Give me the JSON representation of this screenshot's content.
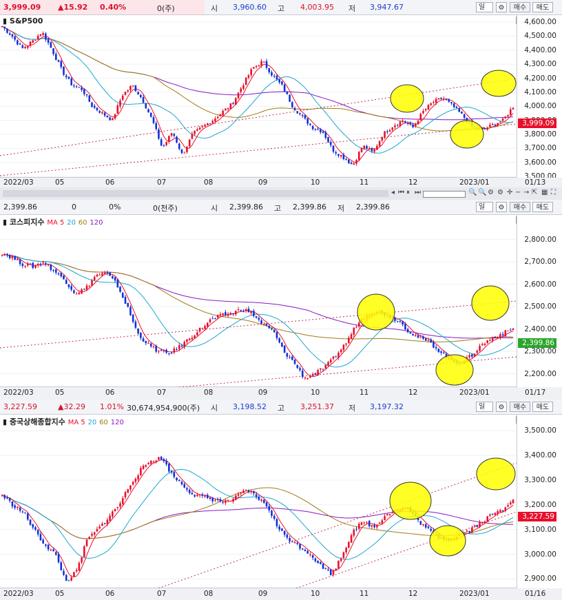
{
  "panels": [
    {
      "title": "S&P500",
      "header": {
        "price": "3,999.09",
        "change": "▲15.92",
        "pct": "0.40%",
        "volume": "0(주)",
        "open_label": "시",
        "open": "3,960.60",
        "high_label": "고",
        "high": "4,003.95",
        "low_label": "저",
        "low": "3,947.67"
      },
      "period": "일",
      "buy": "매수",
      "sell": "매도",
      "ma_legend": [],
      "last_price": "3,999.09",
      "x_labels": [
        "2022/03",
        "05",
        "06",
        "07",
        "08",
        "09",
        "10",
        "11",
        "12",
        "2023/01"
      ],
      "x_end": "01/13",
      "y_ticks": [
        "4,600.00",
        "4,500.00",
        "4,400.00",
        "4,300.00",
        "4,200.00",
        "4,100.00",
        "4,000.00",
        "3,900.00",
        "3,800.00",
        "3,700.00",
        "3,600.00",
        "3,500.00"
      ]
    },
    {
      "title": "코스피지수",
      "header": {
        "price": "2,399.86",
        "change": "0",
        "pct": "0%",
        "volume": "0(천주)",
        "open_label": "시",
        "open": "2,399.86",
        "high_label": "고",
        "high": "2,399.86",
        "low_label": "저",
        "low": "2,399.86"
      },
      "period": "일",
      "buy": "매수",
      "sell": "매도",
      "ma_legend": [
        "MA 5",
        "20",
        "60",
        "120"
      ],
      "last_price": "2,399.86",
      "x_labels": [
        "2022/03",
        "05",
        "06",
        "07",
        "08",
        "09",
        "10",
        "11",
        "12",
        "2023/01"
      ],
      "x_end": "01/17",
      "y_ticks": [
        "2,800.00",
        "2,700.00",
        "2,600.00",
        "2,500.00",
        "2,400.00",
        "2,300.00",
        "2,200.00"
      ]
    },
    {
      "title": "중국상해종합지수",
      "header": {
        "price": "3,227.59",
        "change": "▲32.29",
        "pct": "1.01%",
        "volume": "30,674,954,900(주)",
        "open_label": "시",
        "open": "3,198.52",
        "high_label": "고",
        "high": "3,251.37",
        "low_label": "저",
        "low": "3,197.32"
      },
      "period": "일",
      "buy": "매수",
      "sell": "매도",
      "ma_legend": [
        "MA 5",
        "20",
        "60",
        "120"
      ],
      "last_price": "3,227.59",
      "x_labels": [
        "2022/03",
        "05",
        "06",
        "07",
        "08",
        "09",
        "10",
        "11",
        "12",
        "2023/01"
      ],
      "x_end": "01/16",
      "y_ticks": [
        "3,500.00",
        "3,400.00",
        "3,300.00",
        "3,200.00",
        "3,100.00",
        "3,000.00",
        "2,900.00"
      ]
    }
  ],
  "colors": {
    "up": "#e8102b",
    "down": "#1030d8",
    "ma5": "#e8102b",
    "ma20": "#1ea5d2",
    "ma60": "#a07a10",
    "ma120": "#8a16c6",
    "highlight": "#ffff00",
    "trend": "#c0304a"
  },
  "chart_data": [
    {
      "type": "candlestick",
      "title": "S&P500",
      "ylim": [
        3491,
        4649
      ],
      "x_range": [
        "2022/03",
        "2023/01/13"
      ],
      "last": 3999.09,
      "series": [
        {
          "name": "close",
          "values": [
            4570,
            4500,
            4410,
            4460,
            4530,
            4400,
            4250,
            4150,
            4120,
            4000,
            3950,
            3900,
            4080,
            4150,
            4050,
            3900,
            3700,
            3820,
            3650,
            3800,
            3850,
            3900,
            3960,
            4020,
            4150,
            4270,
            4320,
            4220,
            4140,
            4000,
            3920,
            3850,
            3820,
            3690,
            3640,
            3580,
            3720,
            3670,
            3800,
            3860,
            3900,
            3850,
            3960,
            4030,
            4060,
            4000,
            3930,
            3850,
            3830,
            3870,
            3900,
            3999
          ]
        }
      ],
      "highlights": [
        "4,100 area on 2022/12",
        "3,800 area on 2023/01",
        "4,200 target"
      ],
      "trendlines": "upward channel"
    },
    {
      "type": "candlestick",
      "title": "코스피지수",
      "ylim": [
        2140,
        2910
      ],
      "x_range": [
        "2022/03",
        "2023/01/17"
      ],
      "last": 2399.86,
      "series": [
        {
          "name": "close",
          "values": [
            2740,
            2720,
            2690,
            2680,
            2700,
            2660,
            2620,
            2560,
            2580,
            2640,
            2650,
            2600,
            2500,
            2380,
            2330,
            2300,
            2290,
            2320,
            2360,
            2400,
            2440,
            2460,
            2470,
            2490,
            2470,
            2420,
            2390,
            2300,
            2250,
            2180,
            2200,
            2230,
            2280,
            2340,
            2420,
            2470,
            2480,
            2460,
            2440,
            2390,
            2360,
            2340,
            2300,
            2260,
            2250,
            2280,
            2330,
            2360,
            2380,
            2400
          ]
        }
      ],
      "highlights": [
        "2,480 area on 2022/11",
        "2,230 area on 2023/01",
        "2,510 target"
      ],
      "trendlines": "upward channel"
    },
    {
      "type": "candlestick",
      "title": "중국상해종합지수",
      "ylim": [
        2862,
        3565
      ],
      "x_range": [
        "2022/03",
        "2023/01/16"
      ],
      "last": 3227.59,
      "series": [
        {
          "name": "close",
          "values": [
            3240,
            3200,
            3170,
            3100,
            3040,
            3000,
            2890,
            2930,
            3060,
            3100,
            3150,
            3200,
            3280,
            3340,
            3380,
            3390,
            3320,
            3280,
            3240,
            3230,
            3220,
            3210,
            3230,
            3260,
            3230,
            3190,
            3100,
            3060,
            3030,
            3000,
            2950,
            2920,
            3000,
            3100,
            3130,
            3110,
            3160,
            3180,
            3190,
            3140,
            3100,
            3070,
            3060,
            3080,
            3100,
            3130,
            3160,
            3180,
            3228
          ]
        }
      ],
      "highlights": [
        "3,200 area on 2022/12",
        "3,060 area on 2023/01",
        "3,310 target"
      ],
      "trendlines": "upward channel"
    }
  ]
}
